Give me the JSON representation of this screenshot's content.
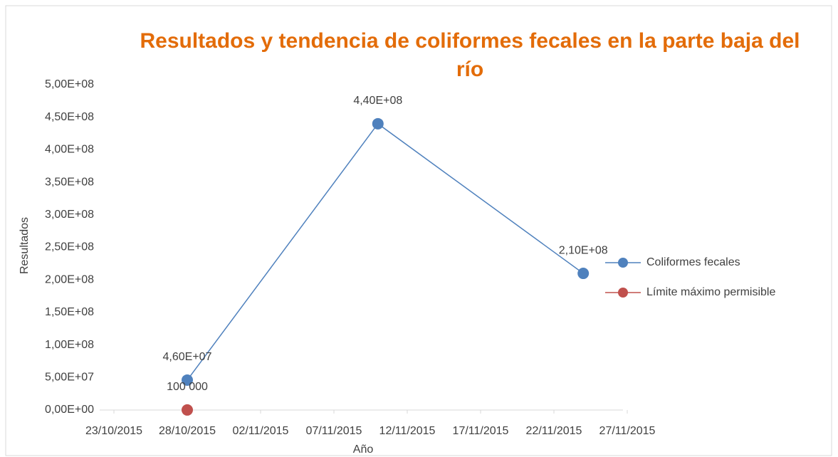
{
  "chart_data": {
    "type": "line",
    "title": "Resultados y tendencia de coliformes fecales en la parte baja del río",
    "x_label": "Año",
    "y_label": "Resultados",
    "xlim": [
      "23/10/2015",
      "27/11/2015"
    ],
    "xticks": [
      "23/10/2015",
      "28/10/2015",
      "02/11/2015",
      "07/11/2015",
      "12/11/2015",
      "17/11/2015",
      "22/11/2015",
      "27/11/2015"
    ],
    "ylim": [
      0,
      500000000
    ],
    "yticks": [
      {
        "value": 0,
        "label": "0,00E+00"
      },
      {
        "value": 50000000,
        "label": "5,00E+07"
      },
      {
        "value": 100000000,
        "label": "1,00E+08"
      },
      {
        "value": 150000000,
        "label": "1,50E+08"
      },
      {
        "value": 200000000,
        "label": "2,00E+08"
      },
      {
        "value": 250000000,
        "label": "2,50E+08"
      },
      {
        "value": 300000000,
        "label": "3,00E+08"
      },
      {
        "value": 350000000,
        "label": "3,50E+08"
      },
      {
        "value": 400000000,
        "label": "4,00E+08"
      },
      {
        "value": 450000000,
        "label": "4,50E+08"
      },
      {
        "value": 500000000,
        "label": "5,00E+08"
      }
    ],
    "legend": "right",
    "series": [
      {
        "name": "Coliformes fecales",
        "color": "#4f81bd",
        "x": [
          "28/10/2015",
          "10/11/2015",
          "24/11/2015"
        ],
        "values": [
          46000000,
          440000000,
          210000000
        ],
        "value_labels": [
          "4,60E+07",
          "4,40E+08",
          "2,10E+08"
        ]
      },
      {
        "name": "Límite máximo permisible",
        "color": "#c0504d",
        "x": [
          "28/10/2015"
        ],
        "values": [
          100000
        ],
        "value_labels": [
          "100 000"
        ]
      }
    ]
  }
}
